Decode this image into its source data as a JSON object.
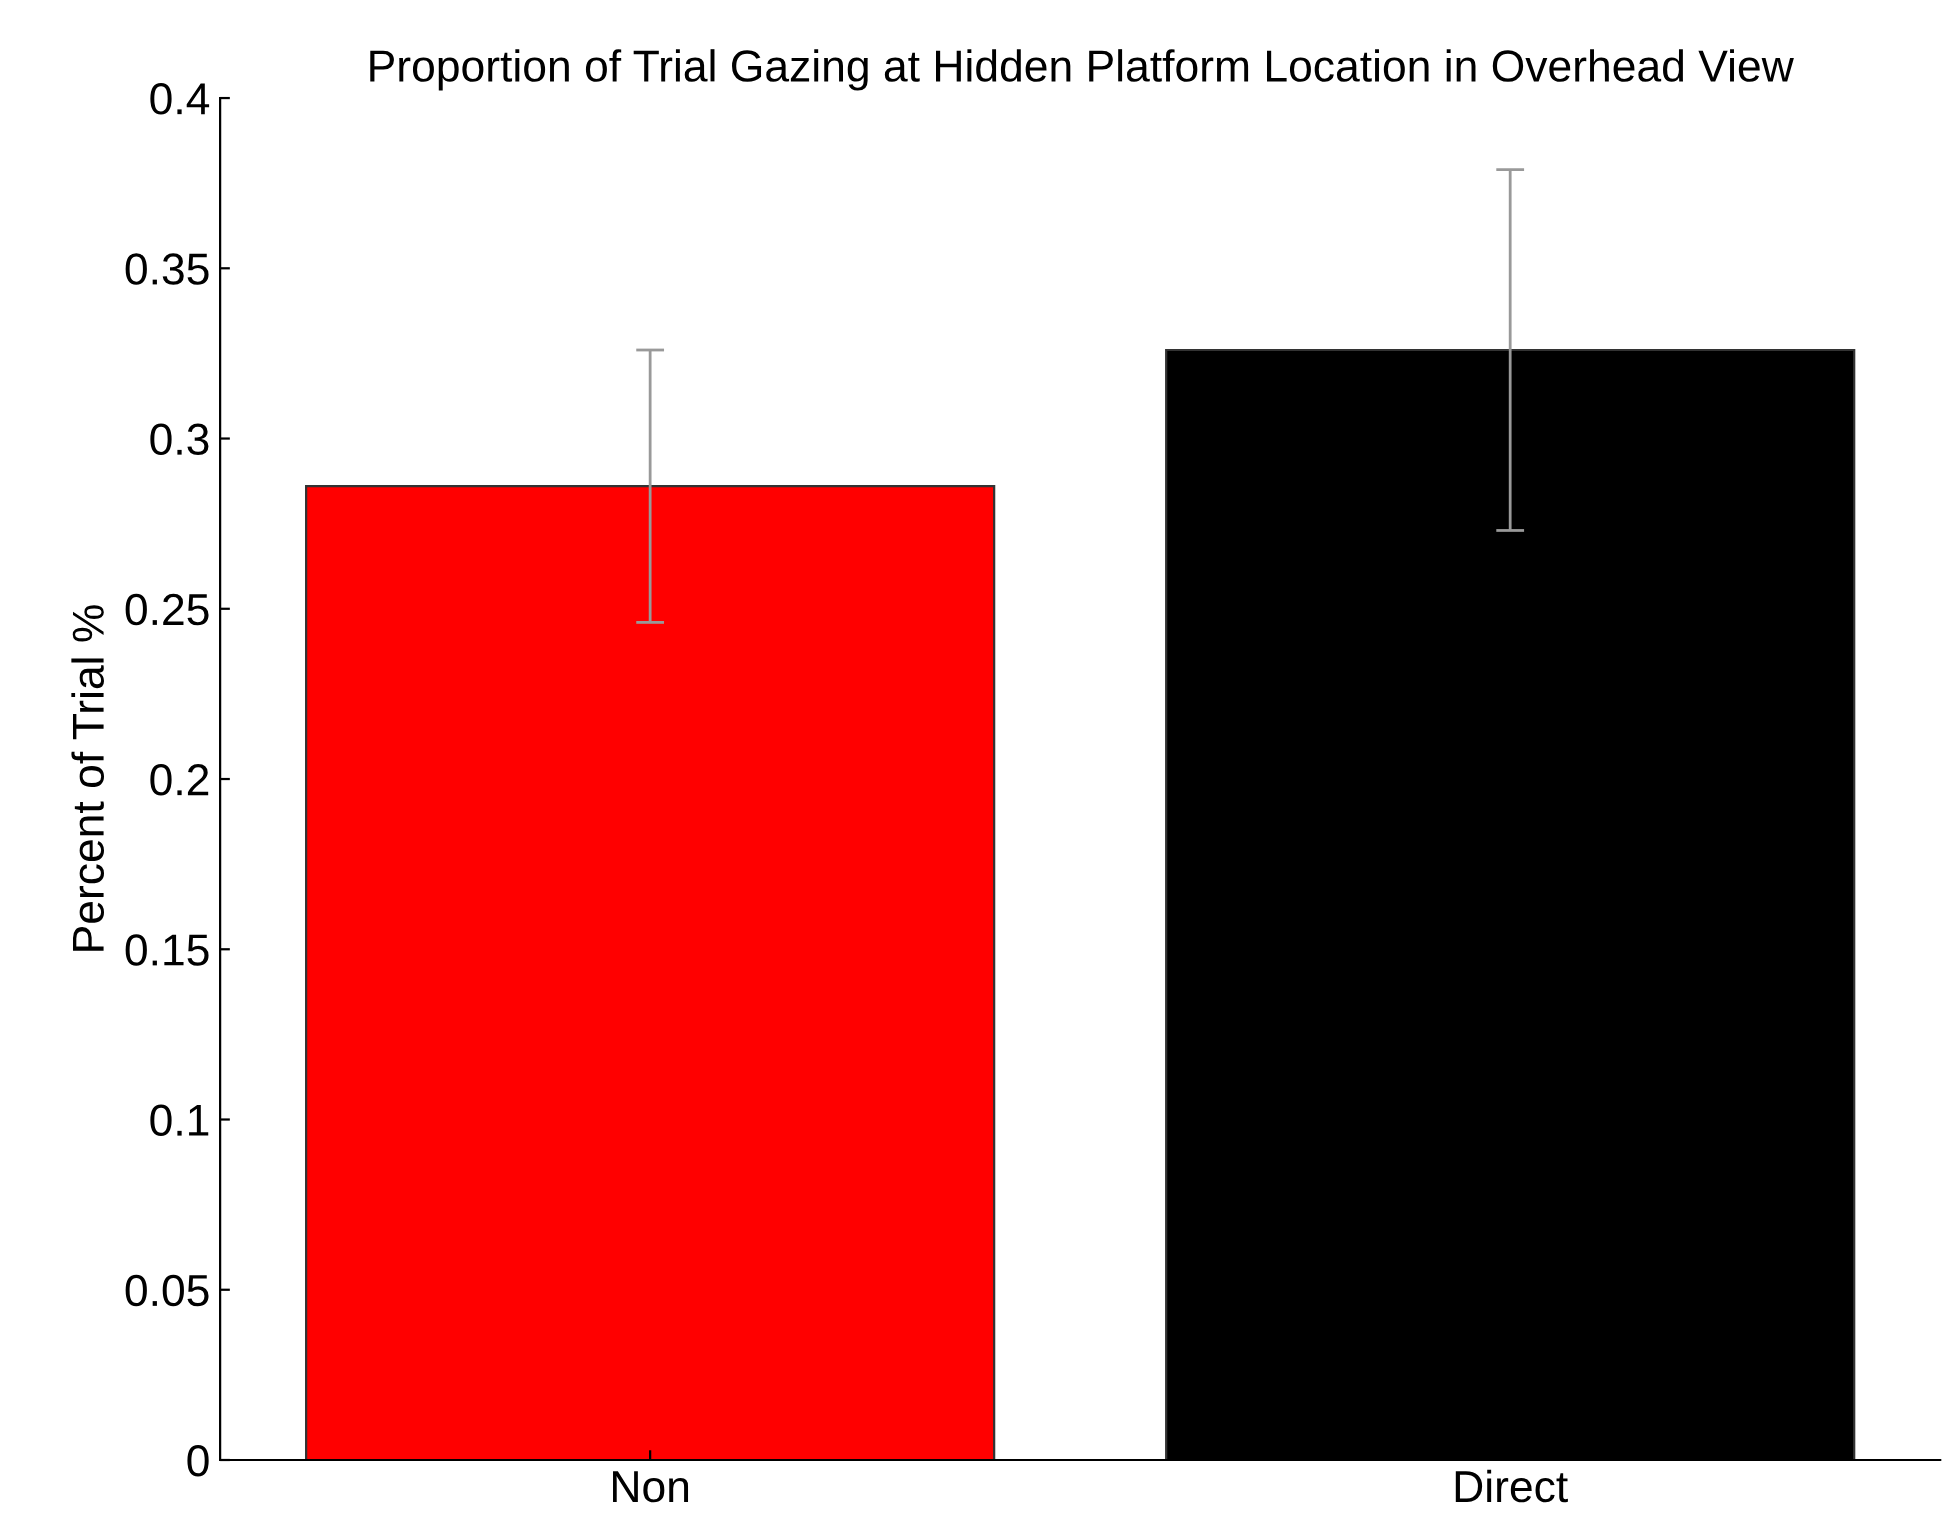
{
  "chart_data": {
    "type": "bar",
    "title": "Proportion of Trial Gazing at Hidden Platform Location in Overhead View",
    "ylabel": "Percent of Trial %",
    "categories": [
      "Non",
      "Direct"
    ],
    "values": [
      0.286,
      0.326
    ],
    "colors": [
      "#ff0000",
      "#000000"
    ],
    "errors": [
      0.04,
      0.053
    ],
    "ylim": [
      0,
      0.4
    ],
    "yticks": [
      0,
      0.05,
      0.1,
      0.15,
      0.2,
      0.25,
      0.3,
      0.35,
      0.4
    ],
    "grid": false,
    "legend": false
  }
}
